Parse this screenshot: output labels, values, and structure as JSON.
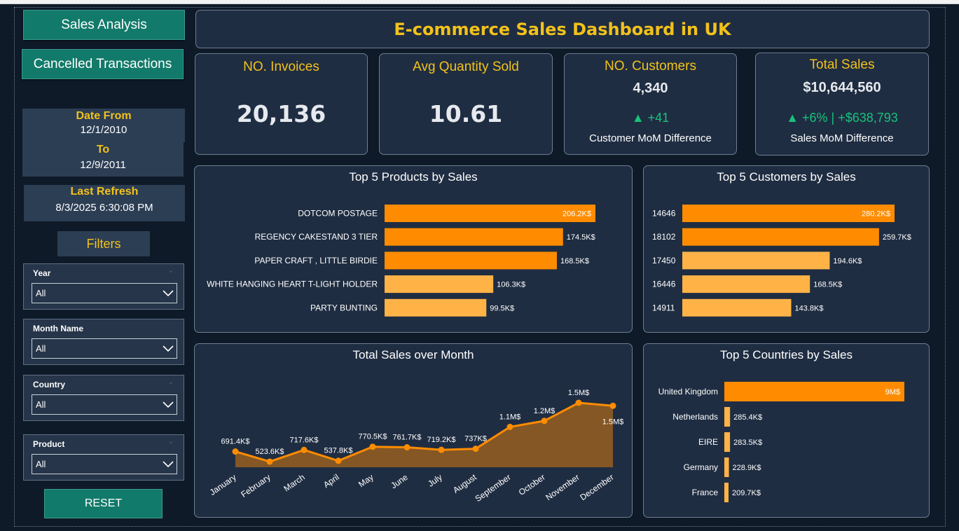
{
  "nav": {
    "sales_analysis": "Sales Analysis",
    "cancelled_transactions": "Cancelled Transactions"
  },
  "date_range": {
    "from_label": "Date From",
    "from_value": "12/1/2010",
    "to_label": "To",
    "to_value": "12/9/2011"
  },
  "refresh": {
    "label": "Last Refresh",
    "value": "8/3/2025 6:30:08 PM"
  },
  "filters": {
    "title": "Filters",
    "slicers": [
      {
        "label": "Year",
        "value": "All"
      },
      {
        "label": "Month Name",
        "value": "All"
      },
      {
        "label": "Country",
        "value": "All"
      },
      {
        "label": "Product",
        "value": "All"
      }
    ],
    "reset_label": "RESET"
  },
  "dashboard": {
    "title": "E-commerce Sales Dashboard in UK"
  },
  "kpis": {
    "invoices": {
      "title": "NO. Invoices",
      "value": "20,136"
    },
    "avg_qty": {
      "title": "Avg Quantity Sold",
      "value": "10.61"
    },
    "customers": {
      "title": "NO. Customers",
      "value": "4,340",
      "delta": "▲ +41",
      "sub": "Customer MoM Difference"
    },
    "total_sales": {
      "title": "Total Sales",
      "value": "$10,644,560",
      "delta": "▲ +6% | +$638,793",
      "sub": "Sales MoM Difference"
    }
  },
  "colors": {
    "accent": "#f2c21a",
    "bar_primary": "#ff8c00",
    "bar_secondary": "#ffb347",
    "positive": "#18c27a",
    "nav_button": "#127a6a"
  },
  "chart_data": [
    {
      "type": "bar",
      "orientation": "horizontal",
      "title": "Top 5 Products by Sales",
      "categories": [
        "DOTCOM POSTAGE",
        "REGENCY CAKESTAND 3 TIER",
        "PAPER CRAFT , LITTLE BIRDIE",
        "WHITE HANGING HEART T-LIGHT HOLDER",
        "PARTY BUNTING"
      ],
      "values": [
        206.2,
        174.5,
        168.5,
        106.3,
        99.5
      ],
      "labels": [
        "206.2K$",
        "174.5K$",
        "168.5K$",
        "106.3K$",
        "99.5K$"
      ],
      "unit": "K$"
    },
    {
      "type": "bar",
      "orientation": "horizontal",
      "title": "Top 5 Customers by Sales",
      "categories": [
        "14646",
        "18102",
        "17450",
        "16446",
        "14911"
      ],
      "values": [
        280.2,
        259.7,
        194.6,
        168.5,
        143.8
      ],
      "labels": [
        "280.2K$",
        "259.7K$",
        "194.6K$",
        "168.5K$",
        "143.8K$"
      ],
      "unit": "K$"
    },
    {
      "type": "area",
      "title": "Total Sales over Month",
      "categories": [
        "January",
        "February",
        "March",
        "April",
        "May",
        "June",
        "July",
        "August",
        "September",
        "October",
        "November",
        "December"
      ],
      "values": [
        691.4,
        523.6,
        717.6,
        537.8,
        770.5,
        761.7,
        719.2,
        737.0,
        1100,
        1200,
        1500,
        1450
      ],
      "labels": [
        "691.4K$",
        "523.6K$",
        "717.6K$",
        "537.8K$",
        "770.5K$",
        "761.7K$",
        "719.2K$",
        "737K$",
        "1.1M$",
        "1.2M$",
        "1.5M$",
        "1.5M$"
      ],
      "unit": "K$"
    },
    {
      "type": "bar",
      "orientation": "horizontal",
      "title": "Top 5 Countries by Sales",
      "categories": [
        "United Kingdom",
        "Netherlands",
        "EIRE",
        "Germany",
        "France"
      ],
      "values": [
        9000,
        285.4,
        283.5,
        228.9,
        209.7
      ],
      "labels": [
        "9M$",
        "285.4K$",
        "283.5K$",
        "228.9K$",
        "209.7K$"
      ],
      "unit": "K$"
    }
  ]
}
